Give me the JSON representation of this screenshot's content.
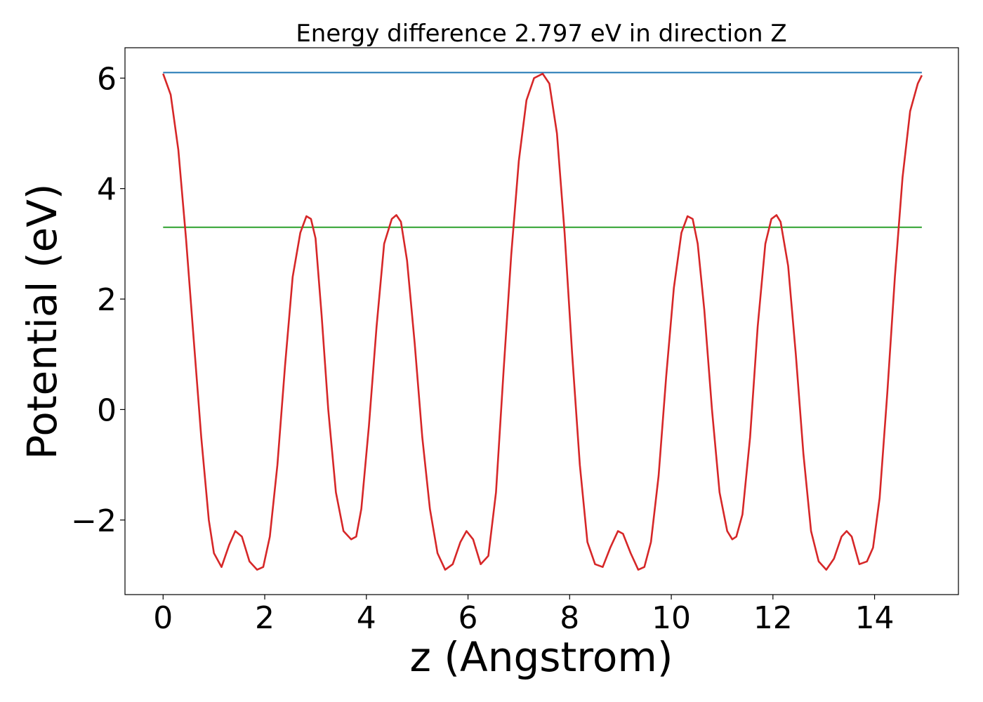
{
  "chart_data": {
    "type": "line",
    "title": "Energy difference 2.797 eV in direction Z",
    "xlabel": "z (Angstrom)",
    "ylabel": "Potential (eV)",
    "xlim": [
      -0.75,
      15.65
    ],
    "ylim": [
      -3.35,
      6.55
    ],
    "xticks": [
      0,
      2,
      4,
      6,
      8,
      10,
      12,
      14
    ],
    "yticks": [
      -2,
      0,
      2,
      4,
      6
    ],
    "xtick_labels": [
      "0",
      "2",
      "4",
      "6",
      "8",
      "10",
      "12",
      "14"
    ],
    "ytick_labels": [
      "−2",
      "0",
      "2",
      "4",
      "6"
    ],
    "grid": false,
    "series": [
      {
        "color": "#1f77b4",
        "x": [
          0,
          14.93
        ],
        "y": [
          6.1,
          6.1
        ]
      },
      {
        "color": "#2ca02c",
        "x": [
          0,
          14.93
        ],
        "y": [
          3.3,
          3.3
        ]
      },
      {
        "color": "#d62728",
        "x": [
          0.0,
          0.15,
          0.3,
          0.45,
          0.6,
          0.75,
          0.9,
          1.0,
          1.15,
          1.3,
          1.42,
          1.55,
          1.7,
          1.85,
          1.97,
          2.1,
          2.25,
          2.4,
          2.55,
          2.7,
          2.82,
          2.91,
          3.0,
          3.12,
          3.25,
          3.4,
          3.55,
          3.7,
          3.8,
          3.9,
          4.05,
          4.2,
          4.35,
          4.5,
          4.59,
          4.68,
          4.8,
          4.95,
          5.1,
          5.25,
          5.4,
          5.55,
          5.7,
          5.85,
          5.97,
          6.1,
          6.25,
          6.4,
          6.55,
          6.7,
          6.85,
          7.0,
          7.15,
          7.3,
          7.47,
          7.6,
          7.75,
          7.9,
          8.05,
          8.2,
          8.35,
          8.5,
          8.65,
          8.8,
          8.95,
          9.05,
          9.2,
          9.35,
          9.47,
          9.6,
          9.75,
          9.9,
          10.05,
          10.2,
          10.32,
          10.42,
          10.52,
          10.65,
          10.8,
          10.95,
          11.1,
          11.2,
          11.28,
          11.4,
          11.55,
          11.7,
          11.85,
          11.97,
          12.07,
          12.15,
          12.3,
          12.45,
          12.6,
          12.75,
          12.9,
          13.05,
          13.2,
          13.35,
          13.45,
          13.55,
          13.7,
          13.85,
          13.97,
          14.1,
          14.25,
          14.4,
          14.55,
          14.7,
          14.85,
          14.93
        ],
        "y": [
          6.08,
          5.7,
          4.7,
          3.1,
          1.3,
          -0.5,
          -2.0,
          -2.6,
          -2.85,
          -2.45,
          -2.2,
          -2.3,
          -2.75,
          -2.9,
          -2.85,
          -2.3,
          -1.0,
          0.8,
          2.4,
          3.2,
          3.5,
          3.45,
          3.1,
          1.7,
          0.0,
          -1.5,
          -2.2,
          -2.35,
          -2.3,
          -1.8,
          -0.3,
          1.5,
          3.0,
          3.45,
          3.52,
          3.4,
          2.7,
          1.2,
          -0.5,
          -1.8,
          -2.6,
          -2.9,
          -2.8,
          -2.4,
          -2.2,
          -2.35,
          -2.8,
          -2.65,
          -1.5,
          0.7,
          2.8,
          4.5,
          5.6,
          6.0,
          6.08,
          5.9,
          5.0,
          3.2,
          1.0,
          -1.0,
          -2.4,
          -2.8,
          -2.85,
          -2.5,
          -2.2,
          -2.25,
          -2.6,
          -2.9,
          -2.85,
          -2.4,
          -1.2,
          0.6,
          2.2,
          3.2,
          3.5,
          3.45,
          3.0,
          1.8,
          0.0,
          -1.5,
          -2.2,
          -2.35,
          -2.3,
          -1.9,
          -0.5,
          1.5,
          3.0,
          3.45,
          3.52,
          3.4,
          2.6,
          1.0,
          -0.8,
          -2.2,
          -2.75,
          -2.9,
          -2.7,
          -2.3,
          -2.2,
          -2.3,
          -2.8,
          -2.75,
          -2.5,
          -1.6,
          0.3,
          2.4,
          4.2,
          5.4,
          5.9,
          6.05
        ]
      }
    ]
  }
}
